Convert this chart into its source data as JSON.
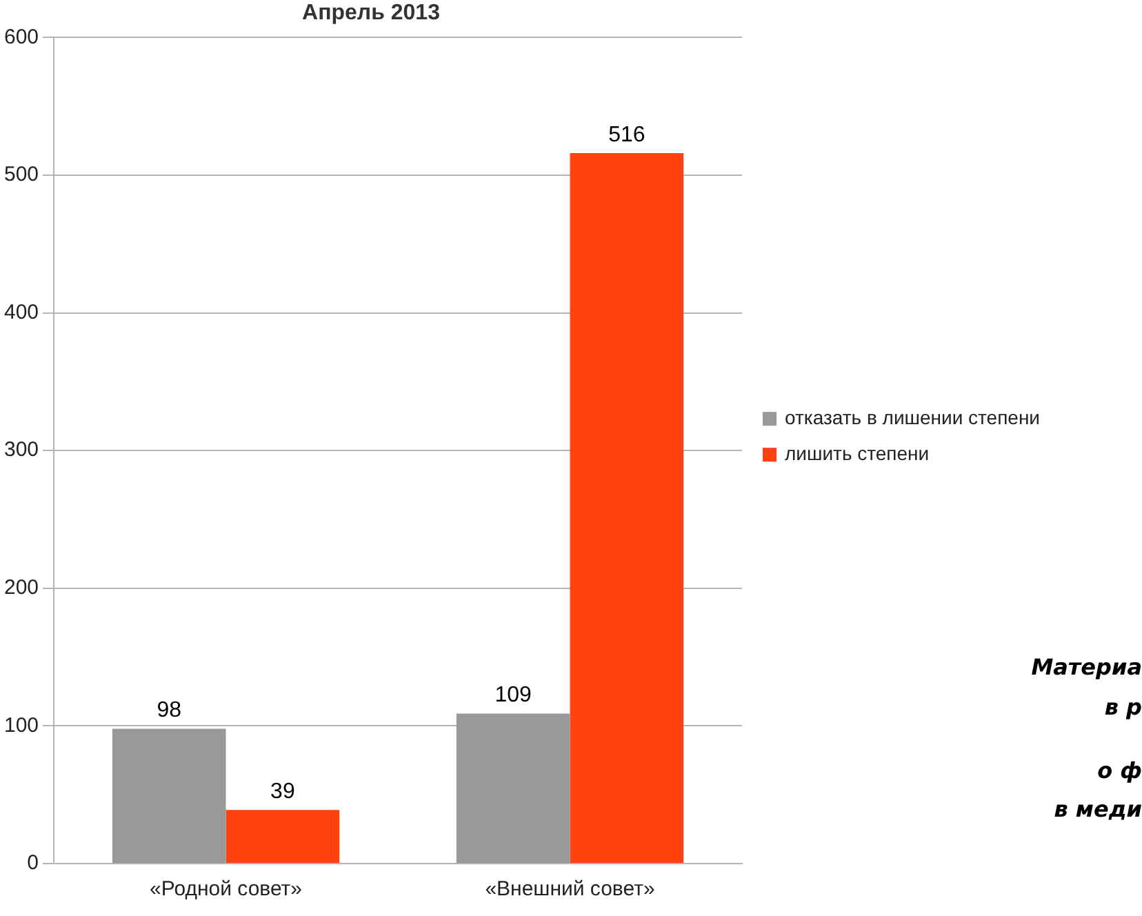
{
  "chart_data": {
    "type": "bar",
    "title": "Апрель 2013",
    "categories": [
      "«Родной совет»",
      "«Внешний совет»"
    ],
    "series": [
      {
        "name": "отказать в лишении степени",
        "color": "#999999",
        "values": [
          98,
          109
        ]
      },
      {
        "name": "лишить степени",
        "color": "#ff420e",
        "values": [
          39,
          516
        ]
      }
    ],
    "ylim": [
      0,
      600
    ],
    "yticks": [
      0,
      100,
      200,
      300,
      400,
      500,
      600
    ],
    "grid": "y",
    "legend": "right",
    "data_labels": true,
    "annotations": [
      "Материа",
      "в р",
      "о ф",
      "в меди"
    ]
  }
}
